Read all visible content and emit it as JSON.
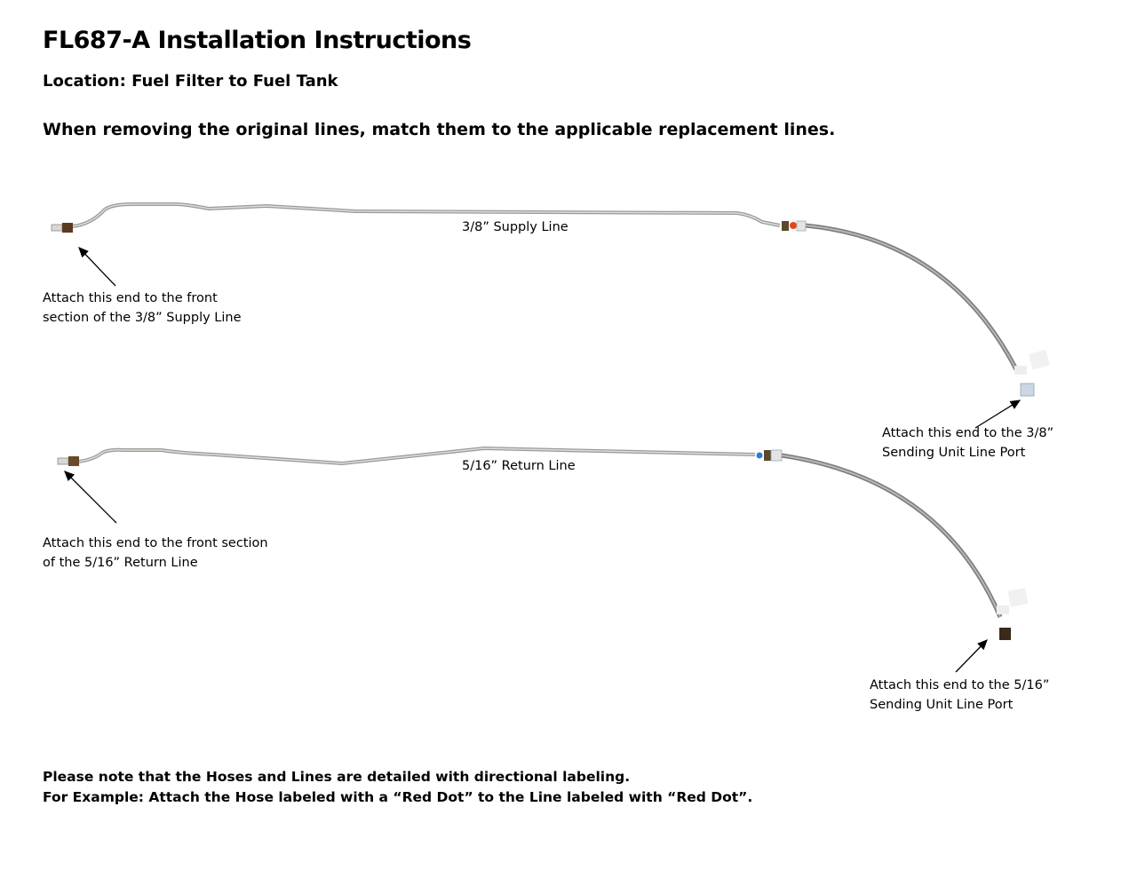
{
  "title": "FL687-A Installation Instructions",
  "location": "Location: Fuel Filter to Fuel Tank",
  "intro": "When removing the original lines, match them to the applicable replacement lines.",
  "supply": {
    "line_label": "3/8” Supply Line",
    "front_note": [
      "Attach this end to the front",
      "section of the 3/8” Supply Line"
    ],
    "tank_note": [
      "Attach this end to the 3/8”",
      "Sending Unit Line Port"
    ],
    "marker_color": "#e8441c"
  },
  "return": {
    "line_label": "5/16” Return Line",
    "front_note": [
      "Attach this end to the front section",
      "of the 5/16” Return Line"
    ],
    "tank_note": [
      "Attach this end to the 5/16”",
      "Sending Unit Line Port"
    ],
    "marker_color": "#2a7fd4"
  },
  "footer": [
    "Please note that the Hoses and Lines are detailed with directional labeling.",
    "For Example: Attach the Hose labeled with a “Red Dot” to the Line labeled with “Red Dot”."
  ]
}
